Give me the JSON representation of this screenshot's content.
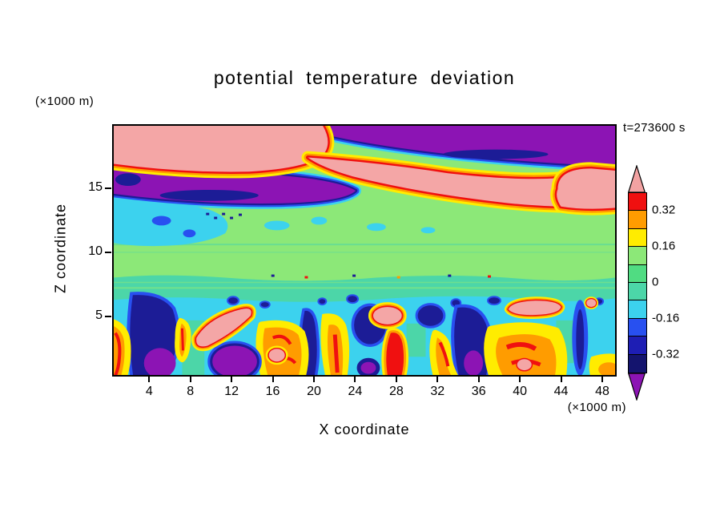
{
  "figure": {
    "title": "potential temperature deviation",
    "timestamp": "t=273600 s",
    "x_axis": {
      "label": "X coordinate",
      "units": "(×1000 m)"
    },
    "y_axis": {
      "label": "Z coordinate",
      "units": "(×1000 m)"
    }
  },
  "chart_data": {
    "type": "heatmap",
    "title": "potential temperature deviation",
    "xlabel": "X coordinate",
    "ylabel": "Z coordinate",
    "x_units": "×1000 m",
    "y_units": "×1000 m",
    "annotation": "t=273600 s",
    "x_ticks": [
      4,
      8,
      12,
      16,
      20,
      24,
      28,
      32,
      36,
      40,
      44,
      48
    ],
    "y_ticks": [
      5,
      10,
      15
    ],
    "xlim": [
      0.4,
      49.4
    ],
    "ylim": [
      0.3,
      20
    ],
    "grid": false,
    "legend_position": "right-colorbar",
    "colorbar": {
      "orientation": "vertical",
      "extend": "both",
      "extend_high_color": "#F2A2A2",
      "extend_low_color": "#8C14B4",
      "tick_labels": [
        "0.32",
        "0.16",
        "0",
        "-0.16",
        "-0.32"
      ],
      "labeled_levels": [
        0.32,
        0.16,
        0,
        -0.16,
        -0.32
      ],
      "segments_top_to_bottom": [
        {
          "range": [
            0.32,
            0.4
          ],
          "color": "#F01010"
        },
        {
          "range": [
            0.24,
            0.32
          ],
          "color": "#FF9C00"
        },
        {
          "range": [
            0.16,
            0.24
          ],
          "color": "#FFEC00"
        },
        {
          "range": [
            0.08,
            0.16
          ],
          "color": "#8CE878"
        },
        {
          "range": [
            0,
            0.08
          ],
          "color": "#50DC82"
        },
        {
          "range": [
            -0.08,
            0
          ],
          "color": "#4CD6A8"
        },
        {
          "range": [
            -0.16,
            -0.08
          ],
          "color": "#3CD2EE"
        },
        {
          "range": [
            -0.24,
            -0.16
          ],
          "color": "#2850F0"
        },
        {
          "range": [
            -0.32,
            -0.24
          ],
          "color": "#1E1EB4"
        },
        {
          "range": [
            -0.4,
            -0.32
          ],
          "color": "#14146E"
        }
      ]
    },
    "field_summary": "Filled contour cross-section (x 0-50 km, z 0-20 km). Strong positive band (pink >0.4 with red/orange/yellow fringes) near z=16-19 km sweeping from upper-left to mid-right edge; strong negative (purple/navy) bands adjacent above and below it near z=14-19 km. Weakly positive light-green layer z~8-13 km with cyan patches on the left. Weakly negative teal/cyan layers z~5-8 km. Below z~5 km a turbulent boundary layer with alternating plumes: navy/purple cold pools and red/orange/yellow warm plumes with small salmon cores."
  }
}
